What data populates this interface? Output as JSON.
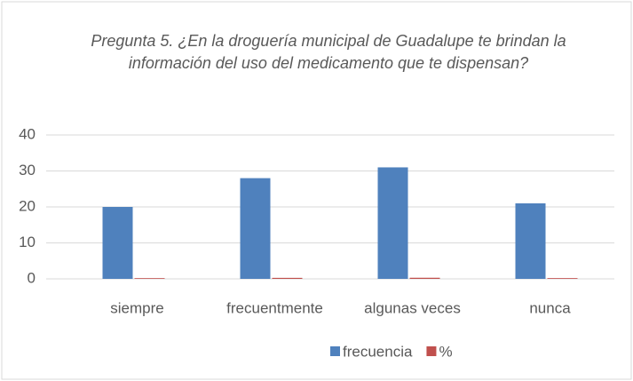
{
  "chart_data": {
    "type": "bar",
    "title": "Pregunta 5. ¿En la droguería municipal de Guadalupe te brindan la información del uso del medicamento que te dispensan?",
    "categories": [
      "siempre",
      "frecuentmente",
      "algunas veces",
      "nunca"
    ],
    "series": [
      {
        "name": "frecuencia",
        "color": "#4f81bd",
        "values": [
          20,
          28,
          31,
          21
        ]
      },
      {
        "name": "%",
        "color": "#c0504d",
        "values": [
          0.2,
          0.28,
          0.31,
          0.21
        ]
      }
    ],
    "ylim": [
      0,
      40
    ],
    "yticks": [
      0,
      10,
      20,
      30,
      40
    ],
    "grid": true,
    "legend": "bottom"
  }
}
